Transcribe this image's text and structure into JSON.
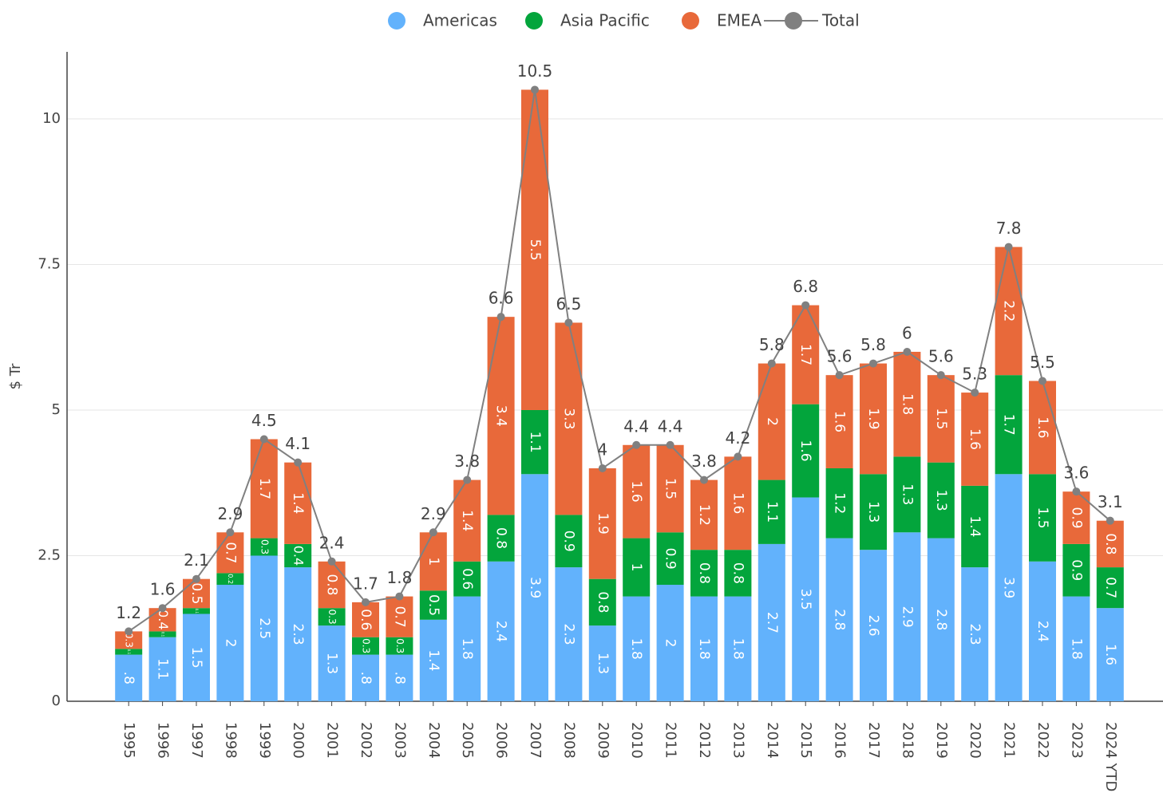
{
  "chart_data": {
    "type": "bar",
    "stacked": true,
    "ylabel": "$ Tr",
    "categories": [
      "1995",
      "1996",
      "1997",
      "1998",
      "1999",
      "2000",
      "2001",
      "2002",
      "2003",
      "2004",
      "2005",
      "2006",
      "2007",
      "2008",
      "2009",
      "2010",
      "2011",
      "2012",
      "2013",
      "2014",
      "2015",
      "2016",
      "2017",
      "2018",
      "2019",
      "2020",
      "2021",
      "2022",
      "2023",
      "2024 YTD"
    ],
    "series": [
      {
        "name": "Americas",
        "color": "#62b2fc",
        "values": [
          0.8,
          1.1,
          1.5,
          2,
          2.5,
          2.3,
          1.3,
          0.8,
          0.8,
          1.4,
          1.8,
          2.4,
          3.9,
          2.3,
          1.3,
          1.8,
          2,
          1.8,
          1.8,
          2.7,
          3.5,
          2.8,
          2.6,
          2.9,
          2.8,
          2.3,
          3.9,
          2.4,
          1.8,
          1.6
        ],
        "value_labels": [
          ".8",
          "1.1",
          "1.5",
          "2",
          "2.5",
          "2.3",
          "1.3",
          ".8",
          ".8",
          "1.4",
          "1.8",
          "2.4",
          "3.9",
          "2.3",
          "1.3",
          "1.8",
          "2",
          "1.8",
          "1.8",
          "2.7",
          "3.5",
          "2.8",
          "2.6",
          "2.9",
          "2.8",
          "2.3",
          "3.9",
          "2.4",
          "1.8",
          "1.6"
        ]
      },
      {
        "name": "Asia Pacific",
        "color": "#03a53c",
        "values": [
          0.1,
          0.1,
          0.1,
          0.2,
          0.3,
          0.4,
          0.3,
          0.3,
          0.3,
          0.5,
          0.6,
          0.8,
          1.1,
          0.9,
          0.8,
          1,
          0.9,
          0.8,
          0.8,
          1.1,
          1.6,
          1.2,
          1.3,
          1.3,
          1.3,
          1.4,
          1.7,
          1.5,
          0.9,
          0.7
        ]
      },
      {
        "name": "EMEA",
        "color": "#e8693a",
        "values": [
          0.3,
          0.4,
          0.5,
          0.7,
          1.7,
          1.4,
          0.8,
          0.6,
          0.7,
          1,
          1.4,
          3.4,
          5.5,
          3.3,
          1.9,
          1.6,
          1.5,
          1.2,
          1.6,
          2,
          1.7,
          1.6,
          1.9,
          1.8,
          1.5,
          1.6,
          2.2,
          1.6,
          0.9,
          0.8
        ]
      },
      {
        "name": "Total",
        "color": "#808080",
        "type": "line",
        "values": [
          1.2,
          1.6,
          2.1,
          2.9,
          4.5,
          4.1,
          2.4,
          1.7,
          1.8,
          2.9,
          3.8,
          6.6,
          10.5,
          6.5,
          4,
          4.4,
          4.4,
          3.8,
          4.2,
          5.8,
          6.8,
          5.6,
          5.8,
          6,
          5.6,
          5.3,
          7.8,
          5.5,
          3.6,
          3.1
        ]
      }
    ],
    "ylim": [
      0,
      11.15
    ],
    "yticks": [
      0,
      2.5,
      5,
      7.5,
      10
    ],
    "grid": true
  }
}
